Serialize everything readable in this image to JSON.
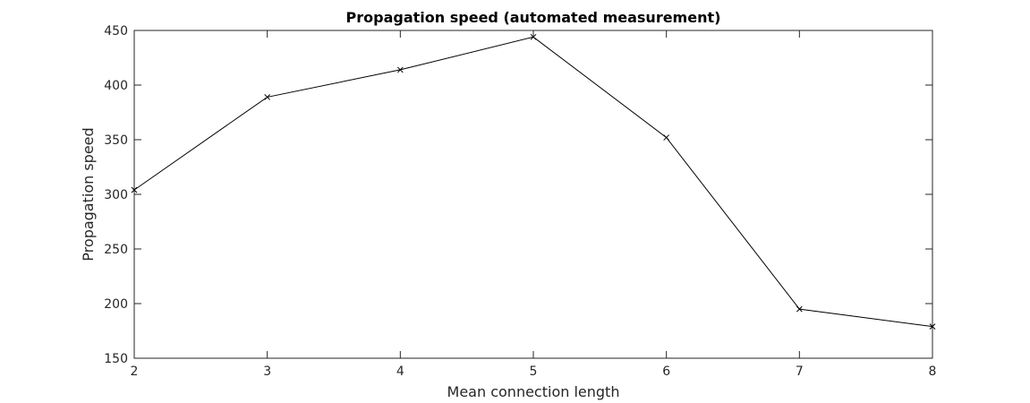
{
  "chart_data": {
    "type": "line",
    "title": "Propagation speed (automated measurement)",
    "xlabel": "Mean connection length",
    "ylabel": "Propagation speed",
    "xlim": [
      2,
      8
    ],
    "ylim": [
      150,
      450
    ],
    "xticks": [
      "2",
      "3",
      "4",
      "5",
      "6",
      "7",
      "8"
    ],
    "yticks": [
      "150",
      "200",
      "250",
      "300",
      "350",
      "400",
      "450"
    ],
    "grid": false,
    "box": true,
    "series": [
      {
        "marker": "x",
        "color": "#000000",
        "x": [
          2,
          3,
          4,
          5,
          6,
          7,
          8
        ],
        "y": [
          304,
          389,
          414,
          444,
          352,
          195,
          179
        ]
      }
    ]
  }
}
